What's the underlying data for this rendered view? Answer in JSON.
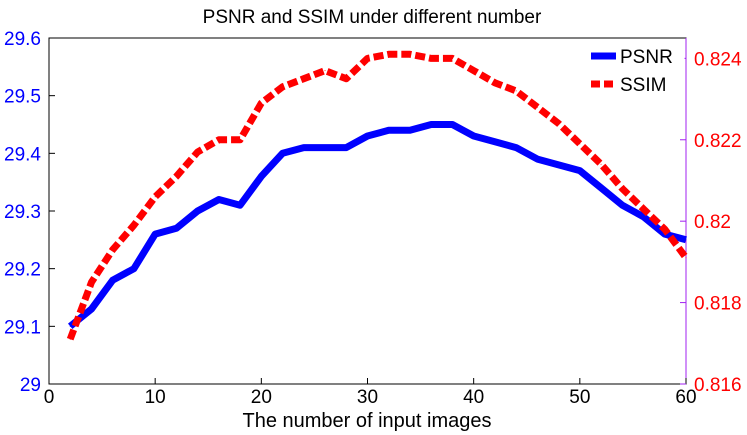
{
  "chart_data": {
    "type": "line",
    "title": "PSNR and SSIM under different number",
    "xlabel": "The number of input images",
    "ylabel": "",
    "ylabel_right": "",
    "xlim": [
      0,
      60
    ],
    "ylim": [
      29,
      29.6
    ],
    "ylim_right": [
      0.816,
      0.8245
    ],
    "x_ticks": [
      "0",
      "10",
      "20",
      "30",
      "40",
      "50",
      "60"
    ],
    "y_ticks_left": [
      "29",
      "29.1",
      "29.2",
      "29.3",
      "29.4",
      "29.5",
      "29.6"
    ],
    "y_ticks_right": [
      "0.816",
      "0.818",
      "0.82",
      "0.822",
      "0.824"
    ],
    "grid": false,
    "legend_position": "top-right",
    "colors": {
      "psnr": "#0000ff",
      "ssim": "#ff0000",
      "left_axis": "#0000ff",
      "right_axis": "#ff0000",
      "right_spine": "#a020f0"
    },
    "series": [
      {
        "name": "PSNR",
        "axis": "left",
        "style": "solid",
        "x": [
          2,
          4,
          6,
          8,
          10,
          12,
          14,
          16,
          18,
          20,
          22,
          24,
          26,
          28,
          30,
          32,
          34,
          36,
          38,
          40,
          42,
          44,
          46,
          48,
          50,
          52,
          54,
          56,
          58,
          60
        ],
        "values": [
          29.1,
          29.13,
          29.18,
          29.2,
          29.26,
          29.27,
          29.3,
          29.32,
          29.31,
          29.36,
          29.4,
          29.41,
          29.41,
          29.41,
          29.43,
          29.44,
          29.44,
          29.45,
          29.45,
          29.43,
          29.42,
          29.41,
          29.39,
          29.38,
          29.37,
          29.34,
          29.31,
          29.29,
          29.26,
          29.25
        ]
      },
      {
        "name": "SSIM",
        "axis": "right",
        "style": "dashed",
        "x": [
          2,
          4,
          6,
          8,
          10,
          12,
          14,
          16,
          18,
          20,
          22,
          24,
          26,
          28,
          30,
          32,
          34,
          36,
          38,
          40,
          42,
          44,
          46,
          48,
          50,
          52,
          54,
          56,
          58,
          60
        ],
        "values": [
          0.8171,
          0.8185,
          0.8193,
          0.8199,
          0.8206,
          0.8211,
          0.8217,
          0.822,
          0.822,
          0.8229,
          0.8233,
          0.8235,
          0.8237,
          0.8235,
          0.824,
          0.8241,
          0.8241,
          0.824,
          0.824,
          0.8237,
          0.8234,
          0.8232,
          0.8228,
          0.8224,
          0.8219,
          0.8214,
          0.8208,
          0.8203,
          0.8198,
          0.8191
        ]
      }
    ]
  }
}
